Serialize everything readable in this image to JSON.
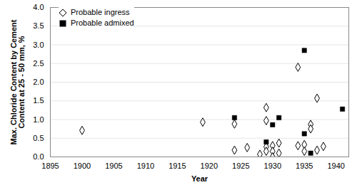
{
  "chart_data": {
    "type": "scatter",
    "xlabel": "Year",
    "ylabel": "Max. Chloride Content by Cement Content at 25 - 50 mm, %",
    "xlim": [
      1895,
      1942
    ],
    "xticks": [
      1895,
      1900,
      1905,
      1910,
      1915,
      1920,
      1925,
      1930,
      1935,
      1940
    ],
    "ylim": [
      0,
      4
    ],
    "yticks": [
      {
        "value": 0,
        "label": "0.0"
      },
      {
        "value": 0.5,
        "label": "0.5"
      },
      {
        "value": 1,
        "label": "1.0"
      },
      {
        "value": 1.5,
        "label": "1.5"
      },
      {
        "value": 2,
        "label": "2.0"
      },
      {
        "value": 2.5,
        "label": "2.5"
      },
      {
        "value": 3,
        "label": "3.0"
      },
      {
        "value": 3.5,
        "label": "3.5"
      },
      {
        "value": 4,
        "label": "4.0"
      }
    ],
    "grid": true,
    "legend": "top-left",
    "series": [
      {
        "name": "Probable ingress",
        "color": "#000000",
        "marker": "diamond_open",
        "x": [
          1900,
          1919,
          1924,
          1924,
          1926,
          1928,
          1929,
          1929,
          1929,
          1929,
          1930,
          1930,
          1930,
          1931,
          1931,
          1934,
          1934,
          1935,
          1935,
          1936,
          1936,
          1937,
          1937,
          1938
        ],
        "values": [
          0.71,
          0.93,
          0.88,
          0.18,
          0.25,
          0.07,
          1.32,
          0.97,
          0.27,
          0.15,
          0.3,
          0.15,
          0.0,
          0.37,
          0.1,
          2.4,
          0.3,
          0.33,
          0.15,
          0.87,
          0.75,
          1.57,
          0.18,
          0.28
        ]
      },
      {
        "name": "Probable admixed",
        "color": "#000000",
        "marker": "square",
        "x": [
          1924,
          1929,
          1930,
          1931,
          1935,
          1935,
          1936,
          1941
        ],
        "values": [
          1.05,
          0.4,
          0.86,
          1.05,
          2.85,
          0.62,
          0.1,
          1.28
        ]
      }
    ]
  }
}
